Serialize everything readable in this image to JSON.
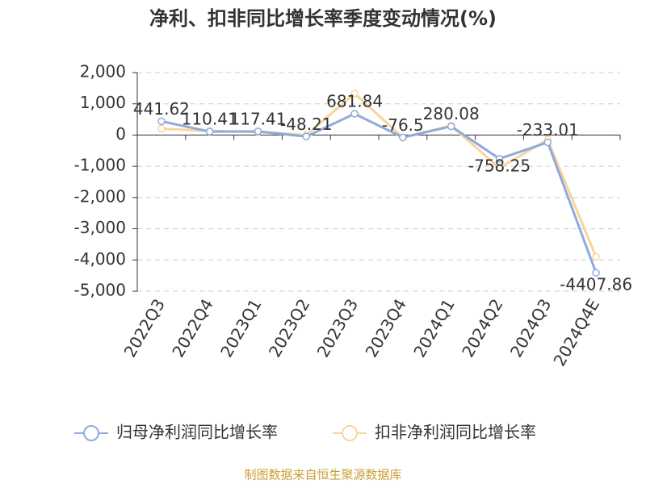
{
  "chart_data": {
    "type": "line",
    "title": "净利、扣非同比增长率季度变动情况(%)",
    "categories": [
      "2022Q3",
      "2022Q4",
      "2023Q1",
      "2023Q2",
      "2023Q3",
      "2023Q4",
      "2024Q1",
      "2024Q2",
      "2024Q3",
      "2024Q4E"
    ],
    "series": [
      {
        "name": "归母净利润同比增长率",
        "color": "#8faadc",
        "values": [
          441.62,
          110.41,
          117.41,
          -48.21,
          681.84,
          -76.5,
          280.08,
          -758.25,
          -233.01,
          -4407.86
        ]
      },
      {
        "name": "扣非净利润同比增长率",
        "color": "#f9d49b",
        "values": [
          200,
          130,
          100,
          0,
          1330,
          -80,
          300,
          -1050,
          -150,
          -3900
        ]
      }
    ],
    "ylim": [
      -5000,
      2000
    ],
    "yticks": [
      {
        "value": 2000,
        "label": "2,000"
      },
      {
        "value": 1000,
        "label": "1,000"
      },
      0,
      {
        "value": -1000,
        "label": "-1,000"
      },
      {
        "value": -2000,
        "label": "-2,000"
      },
      {
        "value": -3000,
        "label": "-3,000"
      },
      {
        "value": -4000,
        "label": "-4,000"
      },
      {
        "value": -5000,
        "label": "-5,000"
      }
    ],
    "grid": true,
    "source": "制图数据来自恒生聚源数据库"
  }
}
